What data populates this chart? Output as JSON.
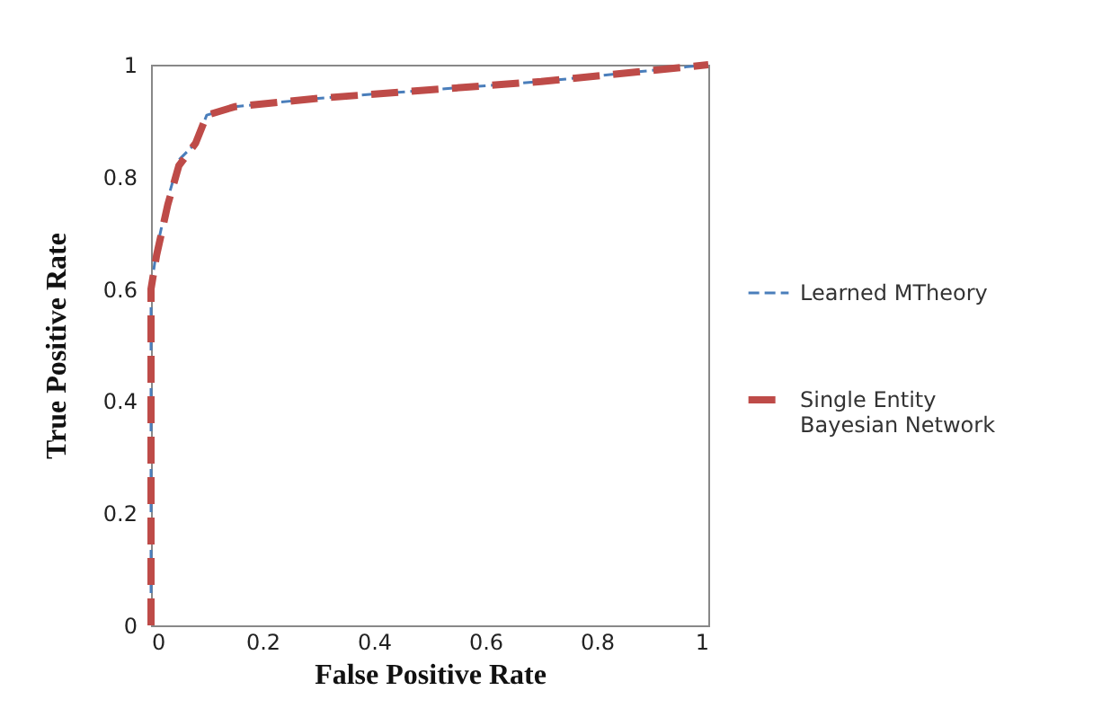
{
  "chart_data": {
    "type": "line",
    "xlabel": "False Positive Rate",
    "ylabel": "True Positive Rate",
    "xlim": [
      0,
      1
    ],
    "ylim": [
      0,
      1
    ],
    "xticks": [
      0,
      0.2,
      0.4,
      0.6,
      0.8,
      1
    ],
    "yticks": [
      0,
      0.2,
      0.4,
      0.6,
      0.8,
      1
    ],
    "grid": false,
    "legend": "right",
    "line_style": "dashed",
    "series": [
      {
        "name": "Learned MTheory",
        "color": "#4a7ebb",
        "x": [
          0,
          0,
          0.01,
          0.03,
          0.05,
          0.08,
          0.1,
          0.15,
          0.3,
          0.5,
          0.7,
          0.9,
          1
        ],
        "values": [
          0,
          0.6,
          0.67,
          0.76,
          0.83,
          0.86,
          0.91,
          0.925,
          0.94,
          0.955,
          0.97,
          0.99,
          1
        ]
      },
      {
        "name": "Single Entity Bayesian Network",
        "color": "#be4b48",
        "x": [
          0,
          0,
          0.01,
          0.03,
          0.05,
          0.08,
          0.1,
          0.15,
          0.3,
          0.5,
          0.7,
          0.9,
          1
        ],
        "values": [
          0,
          0.6,
          0.66,
          0.75,
          0.82,
          0.86,
          0.91,
          0.925,
          0.94,
          0.955,
          0.97,
          0.99,
          1
        ]
      }
    ]
  }
}
